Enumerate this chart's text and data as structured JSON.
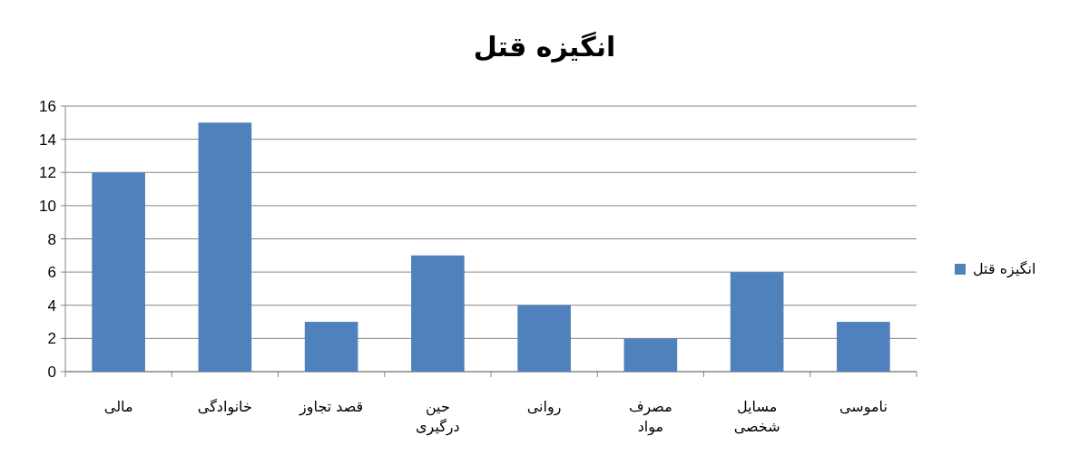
{
  "chart_data": {
    "type": "bar",
    "title": "انگیزه قتل",
    "categories": [
      "مالی",
      "خانوادگی",
      "قصد تجاوز",
      "حین درگیری",
      "روانی",
      "مصرف مواد",
      "مسایل شخصی",
      "ناموسی"
    ],
    "series": [
      {
        "name": "انگیزه قتل",
        "color": "#4f81bd",
        "values": [
          12,
          15,
          3,
          7,
          4,
          2,
          6,
          3
        ]
      }
    ],
    "ylim": [
      0,
      16
    ],
    "yticks": [
      0,
      2,
      4,
      6,
      8,
      10,
      12,
      14,
      16
    ],
    "grid": "y",
    "legend": "right"
  }
}
